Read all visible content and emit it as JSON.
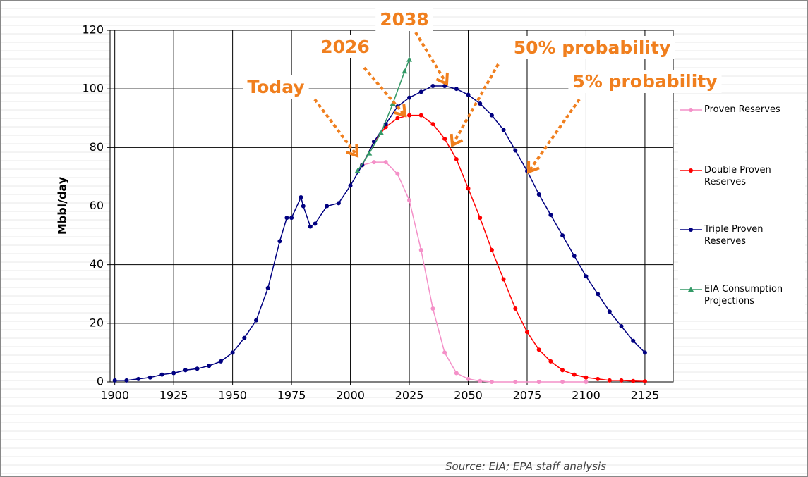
{
  "chart_data": {
    "type": "line",
    "y_label": "Mbbl/day",
    "source": "Source:  EIA; EPA staff analysis",
    "xlim": [
      1898,
      2137
    ],
    "ylim": [
      0,
      120
    ],
    "xticks": [
      1900,
      1925,
      1950,
      1975,
      2000,
      2025,
      2050,
      2075,
      2100,
      2125
    ],
    "yticks": [
      0,
      20,
      40,
      60,
      80,
      100,
      120
    ],
    "grid": true,
    "legend": "right",
    "annotations": [
      "Today",
      "2026",
      "2038",
      "50% probability",
      "5% probability"
    ],
    "series": [
      {
        "name": "Proven Reserves",
        "color": "#f490c8",
        "marker": "circle",
        "x": [
          2005,
          2010,
          2015,
          2020,
          2025,
          2030,
          2035,
          2040,
          2045,
          2050,
          2055,
          2060,
          2070,
          2080,
          2090,
          2100
        ],
        "values": [
          74,
          75,
          75,
          71,
          62,
          45,
          25,
          10,
          3,
          1,
          0.3,
          0,
          0,
          0,
          0,
          0
        ]
      },
      {
        "name": "Double Proven Reserves",
        "color": "#ff0000",
        "marker": "circle",
        "x": [
          2005,
          2010,
          2015,
          2020,
          2025,
          2030,
          2035,
          2040,
          2045,
          2050,
          2055,
          2060,
          2065,
          2070,
          2075,
          2080,
          2085,
          2090,
          2095,
          2100,
          2105,
          2110,
          2115,
          2120,
          2125
        ],
        "values": [
          74,
          82,
          87,
          90,
          91,
          91,
          88,
          83,
          76,
          66,
          56,
          45,
          35,
          25,
          17,
          11,
          7,
          4,
          2.5,
          1.5,
          1,
          0.5,
          0.5,
          0.3,
          0.2
        ]
      },
      {
        "name": "Triple Proven Reserves",
        "color": "#000080",
        "marker": "circle",
        "x": [
          1900,
          1905,
          1910,
          1915,
          1920,
          1925,
          1930,
          1935,
          1940,
          1945,
          1950,
          1955,
          1960,
          1965,
          1970,
          1973,
          1975,
          1979,
          1980,
          1983,
          1985,
          1990,
          1995,
          2000,
          2005,
          2010,
          2015,
          2020,
          2025,
          2030,
          2035,
          2040,
          2045,
          2050,
          2055,
          2060,
          2065,
          2070,
          2075,
          2080,
          2085,
          2090,
          2095,
          2100,
          2105,
          2110,
          2115,
          2120,
          2125
        ],
        "values": [
          0.5,
          0.5,
          1,
          1.5,
          2.5,
          3,
          4,
          4.5,
          5.5,
          7,
          10,
          15,
          21,
          32,
          48,
          56,
          56,
          63,
          60,
          53,
          54,
          60,
          61,
          67,
          74,
          82,
          88,
          94,
          97,
          99,
          101,
          101,
          100,
          98,
          95,
          91,
          86,
          79,
          72,
          64,
          57,
          50,
          43,
          36,
          30,
          24,
          19,
          14,
          10
        ]
      },
      {
        "name": "EIA Consumption Projections",
        "color": "#339966",
        "marker": "triangle",
        "x": [
          2003,
          2008,
          2013,
          2018,
          2023,
          2025
        ],
        "values": [
          72,
          78,
          85,
          95,
          106,
          110
        ]
      }
    ]
  }
}
